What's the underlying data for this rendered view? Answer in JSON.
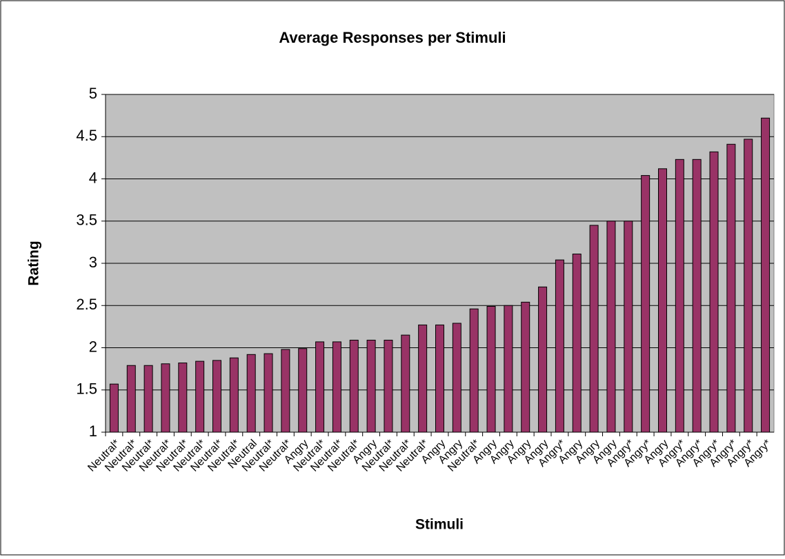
{
  "chart_data": {
    "type": "bar",
    "title": "Average Responses per Stimuli",
    "x_label": "Stimuli",
    "y_label": "Rating",
    "categories": [
      "Neutral*",
      "Neutral*",
      "Neutral*",
      "Neutral*",
      "Neutral*",
      "Neutral*",
      "Neutral*",
      "Neutral*",
      "Neutral",
      "Neutral*",
      "Neutral*",
      "Angry",
      "Neutral*",
      "Neutral*",
      "Neutral*",
      "Angry",
      "Neutral*",
      "Neutral*",
      "Neutral*",
      "Angry",
      "Angry",
      "Neutral*",
      "Angry",
      "Angry",
      "Angry",
      "Angry",
      "Angry*",
      "Angry",
      "Angry",
      "Angry",
      "Angry*",
      "Angry*",
      "Angry",
      "Angry*",
      "Angry*",
      "Angry*",
      "Angry*",
      "Angry*",
      "Angry*"
    ],
    "values": [
      1.57,
      1.79,
      1.79,
      1.81,
      1.82,
      1.84,
      1.85,
      1.88,
      1.92,
      1.93,
      1.98,
      1.99,
      2.07,
      2.07,
      2.09,
      2.09,
      2.09,
      2.15,
      2.27,
      2.27,
      2.29,
      2.46,
      2.49,
      2.5,
      2.54,
      2.72,
      3.04,
      3.11,
      3.45,
      3.5,
      3.5,
      4.04,
      4.12,
      4.23,
      4.23,
      4.32,
      4.41,
      4.47,
      4.72
    ],
    "color": "#993366",
    "ylim": [
      1,
      5
    ],
    "yticks": [
      1,
      1.5,
      2,
      2.5,
      3,
      3.5,
      4,
      4.5,
      5
    ],
    "grid": true
  }
}
